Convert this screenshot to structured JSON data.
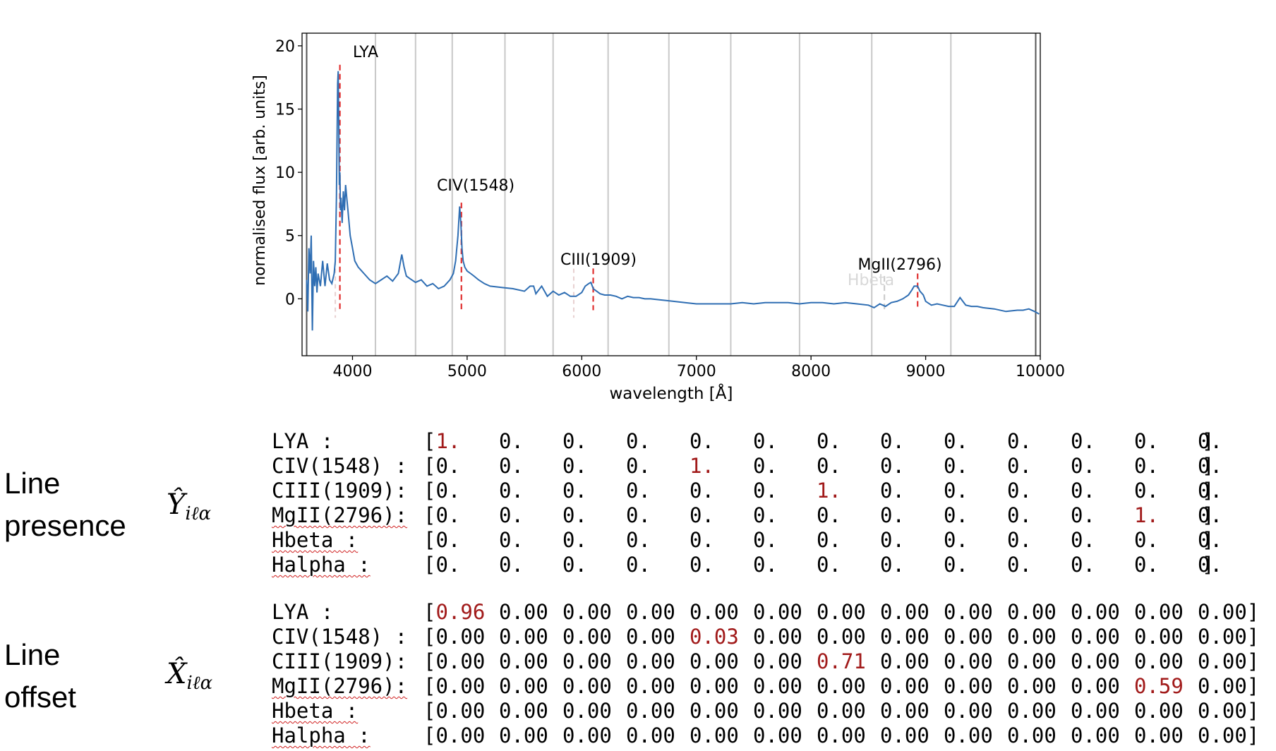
{
  "chart_data": {
    "type": "line",
    "xlabel": "wavelength [Å]",
    "ylabel": "normalised flux [arb. units]",
    "xlim": [
      3560,
      10000
    ],
    "ylim": [
      -4.5,
      21
    ],
    "xticks": [
      4000,
      5000,
      6000,
      7000,
      8000,
      9000,
      10000
    ],
    "yticks": [
      0,
      5,
      10,
      15,
      20
    ],
    "grid": "vertical gray lines",
    "boundary_lines": [
      3600,
      9960
    ],
    "vertical_gridlines": [
      4200,
      4550,
      4870,
      5330,
      5750,
      6230,
      6760,
      7300,
      7900,
      8530,
      9220
    ],
    "series": [
      {
        "color": "#2f6eb3",
        "x": [
          3600,
          3610,
          3620,
          3630,
          3640,
          3650,
          3660,
          3670,
          3680,
          3690,
          3700,
          3720,
          3740,
          3760,
          3780,
          3800,
          3820,
          3840,
          3850,
          3860,
          3870,
          3875,
          3880,
          3885,
          3890,
          3895,
          3900,
          3910,
          3920,
          3930,
          3940,
          3950,
          3960,
          3970,
          3980,
          4000,
          4020,
          4050,
          4080,
          4100,
          4150,
          4200,
          4250,
          4300,
          4350,
          4400,
          4430,
          4450,
          4470,
          4500,
          4550,
          4600,
          4650,
          4700,
          4750,
          4800,
          4850,
          4880,
          4900,
          4920,
          4935,
          4945,
          4955,
          4965,
          4980,
          5000,
          5030,
          5060,
          5100,
          5150,
          5200,
          5300,
          5400,
          5500,
          5550,
          5580,
          5600,
          5650,
          5700,
          5750,
          5800,
          5850,
          5900,
          5950,
          6000,
          6030,
          6060,
          6080,
          6100,
          6130,
          6160,
          6200,
          6250,
          6300,
          6350,
          6400,
          6450,
          6500,
          6550,
          6600,
          6700,
          6800,
          6900,
          7000,
          7100,
          7200,
          7300,
          7400,
          7500,
          7600,
          7700,
          7800,
          7900,
          8000,
          8100,
          8200,
          8300,
          8400,
          8500,
          8550,
          8600,
          8650,
          8700,
          8750,
          8800,
          8850,
          8880,
          8900,
          8930,
          8950,
          8980,
          9000,
          9050,
          9100,
          9150,
          9200,
          9250,
          9300,
          9350,
          9400,
          9450,
          9500,
          9600,
          9700,
          9800,
          9850,
          9900,
          9950,
          9990
        ],
        "y": [
          1.5,
          -1,
          4,
          2,
          5,
          -2.5,
          3,
          1,
          2.5,
          0.5,
          2,
          1,
          3,
          1,
          2.8,
          1.5,
          1.2,
          2,
          3,
          8,
          17,
          18,
          14,
          9,
          10,
          7,
          8,
          6,
          8.5,
          7,
          9,
          8,
          7,
          6,
          5,
          4,
          3,
          2.5,
          2.2,
          2,
          1.5,
          1.2,
          1.5,
          1.8,
          1.4,
          2,
          3.5,
          2.5,
          1.8,
          1.6,
          1.3,
          1.5,
          1,
          1.2,
          0.8,
          1,
          1.5,
          2,
          3,
          5,
          7.3,
          6,
          4,
          3,
          2.5,
          2.2,
          2,
          1.8,
          1.5,
          1.2,
          1,
          0.9,
          0.8,
          0.6,
          1,
          1,
          0.4,
          1,
          0.2,
          0.6,
          0.3,
          0.5,
          0.2,
          0.2,
          0.5,
          1,
          1.2,
          1.3,
          0.8,
          0.6,
          0.4,
          0.3,
          0.3,
          0.2,
          0,
          0.2,
          0.1,
          0.1,
          0,
          0,
          -0.1,
          -0.2,
          -0.3,
          -0.4,
          -0.4,
          -0.4,
          -0.4,
          -0.3,
          -0.4,
          -0.3,
          -0.3,
          -0.3,
          -0.4,
          -0.3,
          -0.3,
          -0.4,
          -0.3,
          -0.4,
          -0.5,
          -0.7,
          -0.4,
          -0.6,
          -0.3,
          -0.2,
          0,
          0.3,
          0.7,
          1,
          1,
          0.6,
          0.3,
          -0.2,
          -0.5,
          -0.4,
          -0.5,
          -0.6,
          -0.6,
          0.1,
          -0.5,
          -0.6,
          -0.6,
          -0.7,
          -0.8,
          -1,
          -0.9,
          -0.9,
          -0.8,
          -1,
          -1.2
        ]
      }
    ],
    "line_markers": [
      {
        "label": "LYA",
        "x": 3890,
        "color": "#e03030"
      },
      {
        "label": "CIV(1548)",
        "x": 4950,
        "color": "#e03030"
      },
      {
        "label": "CIII(1909)",
        "x": 6100,
        "color": "#e03030"
      },
      {
        "label": "MgII(2796)",
        "x": 8930,
        "color": "#e03030"
      },
      {
        "label": "Hbeta",
        "x": 8640,
        "color": "#cccccc"
      }
    ],
    "faint_markers": [
      3850,
      5930
    ]
  },
  "labels": {
    "presence_line1": "Line",
    "presence_line2": "presence",
    "offset_line1": "Line",
    "offset_line2": "offset",
    "presence_symbol": "Ŷ",
    "presence_sub": "iℓα",
    "offset_symbol": "X̂",
    "offset_sub": "iℓα"
  },
  "presence_matrix": {
    "rows": [
      {
        "label": "LYA :",
        "cells": [
          "[1.",
          "0.",
          "0.",
          "0.",
          "0.",
          "0.",
          "0.",
          "0.",
          "0.",
          "0.",
          "0.",
          "0.",
          "0."
        ],
        "close": "]",
        "highlight": 0
      },
      {
        "label": "CIV(1548) :",
        "cells": [
          "[0.",
          "0.",
          "0.",
          "0.",
          "1.",
          "0.",
          "0.",
          "0.",
          "0.",
          "0.",
          "0.",
          "0.",
          "0."
        ],
        "close": "]",
        "highlight": 4
      },
      {
        "label": "CIII(1909):",
        "cells": [
          "[0.",
          "0.",
          "0.",
          "0.",
          "0.",
          "0.",
          "1.",
          "0.",
          "0.",
          "0.",
          "0.",
          "0.",
          "0."
        ],
        "close": "]",
        "highlight": 6
      },
      {
        "label": "MgII(2796):",
        "cells": [
          "[0.",
          "0.",
          "0.",
          "0.",
          "0.",
          "0.",
          "0.",
          "0.",
          "0.",
          "0.",
          "0.",
          "1.",
          "0."
        ],
        "close": "]",
        "highlight": 11
      },
      {
        "label": "Hbeta :",
        "cells": [
          "[0.",
          "0.",
          "0.",
          "0.",
          "0.",
          "0.",
          "0.",
          "0.",
          "0.",
          "0.",
          "0.",
          "0.",
          "0."
        ],
        "close": "]",
        "highlight": -1
      },
      {
        "label": "Halpha :",
        "cells": [
          "[0.",
          "0.",
          "0.",
          "0.",
          "0.",
          "0.",
          "0.",
          "0.",
          "0.",
          "0.",
          "0.",
          "0.",
          "0."
        ],
        "close": "]",
        "highlight": -1
      }
    ]
  },
  "offset_matrix": {
    "rows": [
      {
        "label": "LYA :",
        "cells": [
          "[0.96",
          "0.00",
          "0.00",
          "0.00",
          "0.00",
          "0.00",
          "0.00",
          "0.00",
          "0.00",
          "0.00",
          "0.00",
          "0.00",
          "0.00]"
        ],
        "highlight": 0
      },
      {
        "label": "CIV(1548) :",
        "cells": [
          "[0.00",
          "0.00",
          "0.00",
          "0.00",
          "0.03",
          "0.00",
          "0.00",
          "0.00",
          "0.00",
          "0.00",
          "0.00",
          "0.00",
          "0.00]"
        ],
        "highlight": 4
      },
      {
        "label": "CIII(1909):",
        "cells": [
          "[0.00",
          "0.00",
          "0.00",
          "0.00",
          "0.00",
          "0.00",
          "0.71",
          "0.00",
          "0.00",
          "0.00",
          "0.00",
          "0.00",
          "0.00]"
        ],
        "highlight": 6
      },
      {
        "label": "MgII(2796):",
        "cells": [
          "[0.00",
          "0.00",
          "0.00",
          "0.00",
          "0.00",
          "0.00",
          "0.00",
          "0.00",
          "0.00",
          "0.00",
          "0.00",
          "0.59",
          "0.00]"
        ],
        "highlight": 11
      },
      {
        "label": "Hbeta :",
        "cells": [
          "[0.00",
          "0.00",
          "0.00",
          "0.00",
          "0.00",
          "0.00",
          "0.00",
          "0.00",
          "0.00",
          "0.00",
          "0.00",
          "0.00",
          "0.00]"
        ],
        "highlight": -1
      },
      {
        "label": "Halpha :",
        "cells": [
          "[0.00",
          "0.00",
          "0.00",
          "0.00",
          "0.00",
          "0.00",
          "0.00",
          "0.00",
          "0.00",
          "0.00",
          "0.00",
          "0.00",
          "0.00]"
        ],
        "highlight": -1
      }
    ]
  }
}
